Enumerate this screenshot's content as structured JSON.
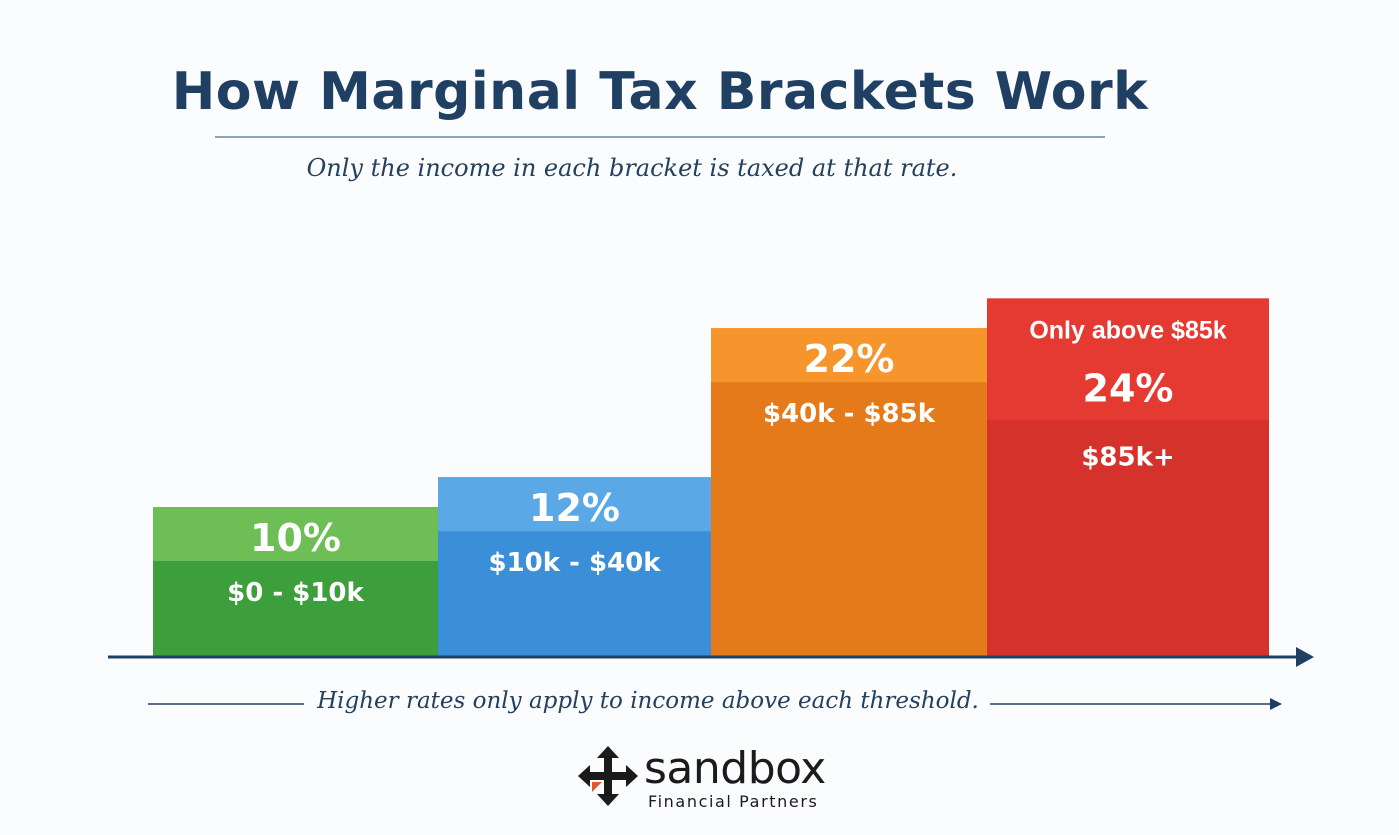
{
  "title": "How Marginal Tax Brackets Work",
  "subtitle": "Only the income in each bracket is taxed at that rate.",
  "footnote": "Higher rates only apply to income above each threshold.",
  "brand": {
    "name": "sandbox",
    "tagline": "Financial Partners",
    "colors": {
      "mark": "#1b1b1b",
      "accent": "#e4572e"
    }
  },
  "colors": {
    "axis": "#1f3f63",
    "title": "#1f3f63",
    "text": "#24405f"
  },
  "chart_data": {
    "type": "bar",
    "categories": [
      "$0 - $10k",
      "$10k - $40k",
      "$40k - $85k",
      "$85k+"
    ],
    "values": [
      10,
      12,
      22,
      24
    ],
    "value_labels": [
      "10%",
      "12%",
      "22%",
      "24%"
    ],
    "annotation": "Only above $85k",
    "annotation_bar_index": 3,
    "bar_colors": [
      {
        "top": "#6cbe55",
        "bottom": "#3d9e3c"
      },
      {
        "top": "#5aa9e6",
        "bottom": "#3a8fd8"
      },
      {
        "top": "#f5952b",
        "bottom": "#e47a1a"
      },
      {
        "top": "#e53a32",
        "bottom": "#d5322c"
      }
    ],
    "grid": false,
    "legend": "none",
    "xlabel": "",
    "ylabel": ""
  }
}
